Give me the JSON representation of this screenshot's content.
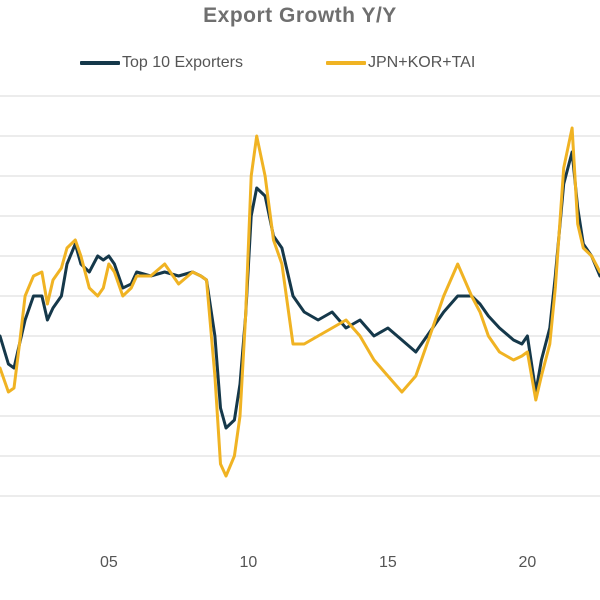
{
  "chart_data": {
    "type": "line",
    "title": "Export Growth Y/Y",
    "xlabel": "",
    "ylabel": "",
    "grid": true,
    "legend_position": "top",
    "x_tick_labels": [
      "05",
      "10",
      "15",
      "20"
    ],
    "x_tick_values": [
      2005,
      2010,
      2015,
      2020
    ],
    "xlim": [
      2001.1,
      2022.6
    ],
    "ylim": [
      -60,
      60
    ],
    "y_gridlines": [
      -50,
      -40,
      -30,
      -20,
      -10,
      0,
      10,
      20,
      30,
      40,
      50
    ],
    "series": [
      {
        "name": "Top 10 Exporters",
        "color": "#15384a",
        "x": [
          2001.1,
          2001.4,
          2001.6,
          2001.8,
          2002.0,
          2002.3,
          2002.6,
          2002.8,
          2003.0,
          2003.3,
          2003.5,
          2003.8,
          2004.0,
          2004.3,
          2004.6,
          2004.8,
          2005.0,
          2005.2,
          2005.5,
          2005.8,
          2006.0,
          2006.5,
          2007.0,
          2007.5,
          2008.0,
          2008.3,
          2008.5,
          2008.8,
          2009.0,
          2009.2,
          2009.5,
          2009.7,
          2009.9,
          2010.1,
          2010.3,
          2010.6,
          2010.9,
          2011.2,
          2011.6,
          2012.0,
          2012.5,
          2013.0,
          2013.5,
          2014.0,
          2014.5,
          2015.0,
          2015.5,
          2016.0,
          2016.5,
          2017.0,
          2017.5,
          2018.0,
          2018.3,
          2018.6,
          2019.0,
          2019.5,
          2019.8,
          2020.0,
          2020.3,
          2020.5,
          2020.8,
          2021.0,
          2021.3,
          2021.6,
          2021.8,
          2022.0,
          2022.3,
          2022.6
        ],
        "y": [
          -10,
          -17,
          -18,
          -12,
          -6,
          0,
          0,
          -6,
          -3,
          0,
          8,
          13,
          8,
          6,
          10,
          9,
          10,
          8,
          2,
          3,
          6,
          5,
          6,
          5,
          6,
          5,
          4,
          -10,
          -28,
          -33,
          -31,
          -22,
          -5,
          20,
          27,
          25,
          15,
          12,
          0,
          -4,
          -6,
          -4,
          -8,
          -6,
          -10,
          -8,
          -11,
          -14,
          -9,
          -4,
          0,
          0,
          -2,
          -5,
          -8,
          -11,
          -12,
          -10,
          -24,
          -16,
          -8,
          5,
          28,
          36,
          22,
          13,
          10,
          5
        ]
      },
      {
        "name": "JPN+KOR+TAI",
        "color": "#f0b323",
        "x": [
          2001.1,
          2001.4,
          2001.6,
          2001.8,
          2002.0,
          2002.3,
          2002.6,
          2002.8,
          2003.0,
          2003.3,
          2003.5,
          2003.8,
          2004.0,
          2004.3,
          2004.6,
          2004.8,
          2005.0,
          2005.2,
          2005.5,
          2005.8,
          2006.0,
          2006.5,
          2007.0,
          2007.5,
          2008.0,
          2008.3,
          2008.5,
          2008.8,
          2009.0,
          2009.2,
          2009.5,
          2009.7,
          2009.9,
          2010.1,
          2010.3,
          2010.6,
          2010.9,
          2011.2,
          2011.6,
          2012.0,
          2012.5,
          2013.0,
          2013.5,
          2014.0,
          2014.5,
          2015.0,
          2015.5,
          2016.0,
          2016.5,
          2017.0,
          2017.5,
          2018.0,
          2018.3,
          2018.6,
          2019.0,
          2019.5,
          2019.8,
          2020.0,
          2020.3,
          2020.5,
          2020.8,
          2021.0,
          2021.3,
          2021.6,
          2021.8,
          2022.0,
          2022.3,
          2022.6
        ],
        "y": [
          -18,
          -24,
          -23,
          -12,
          0,
          5,
          6,
          -2,
          4,
          7,
          12,
          14,
          10,
          2,
          0,
          2,
          8,
          6,
          0,
          2,
          5,
          5,
          8,
          3,
          6,
          5,
          4,
          -20,
          -42,
          -45,
          -40,
          -30,
          -5,
          30,
          40,
          30,
          14,
          8,
          -12,
          -12,
          -10,
          -8,
          -6,
          -10,
          -16,
          -20,
          -24,
          -20,
          -10,
          0,
          8,
          0,
          -4,
          -10,
          -14,
          -16,
          -15,
          -14,
          -26,
          -20,
          -12,
          2,
          32,
          42,
          18,
          12,
          10,
          6
        ]
      }
    ]
  }
}
